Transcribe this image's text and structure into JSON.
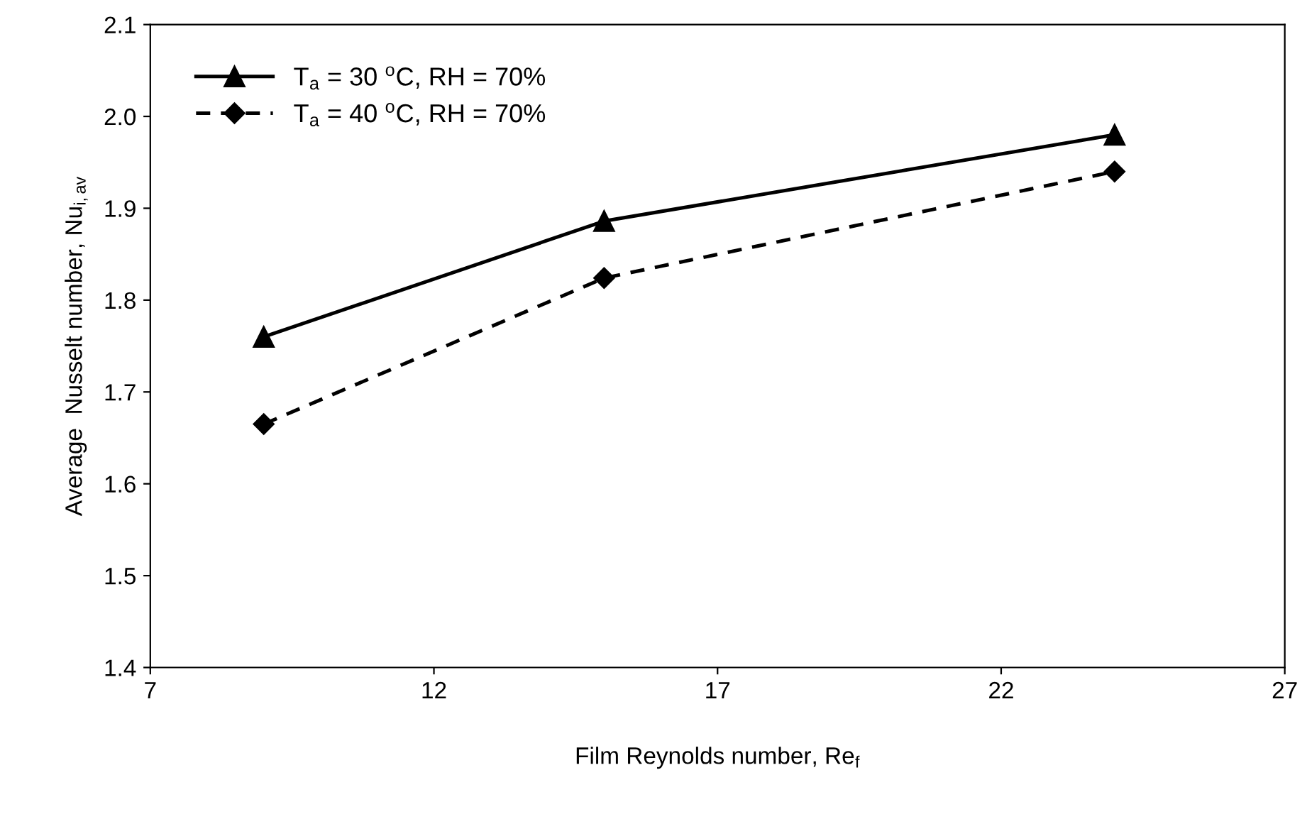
{
  "chart_data": {
    "type": "line",
    "xlabel": "Film Reynolds number, Re$_{f}$",
    "ylabel": "Average  Nusselt number, Nu$_{i,av}$",
    "x": [
      9,
      15,
      24
    ],
    "series": [
      {
        "name": "T$_{a}$ = 30 $^{o}$C, RH = 70%",
        "color": "#000000",
        "values": [
          1.76,
          1.886,
          1.98
        ],
        "marker": "triangle",
        "line_style": "solid"
      },
      {
        "name": "T$_{a}$ = 40 $^{o}$C, RH = 70%",
        "color": "#000000",
        "values": [
          1.665,
          1.824,
          1.94
        ],
        "marker": "diamond",
        "line_style": "dashed"
      }
    ],
    "xlim": [
      7,
      27
    ],
    "xticks": [
      7,
      12,
      17,
      22,
      27
    ],
    "ylim": [
      1.4,
      2.1
    ],
    "yticks": [
      1.4,
      1.5,
      1.6,
      1.7,
      1.8,
      1.9,
      {
        "value": 2.0,
        "label": "2.0"
      },
      2.1
    ],
    "grid": false,
    "legend": "top left"
  }
}
